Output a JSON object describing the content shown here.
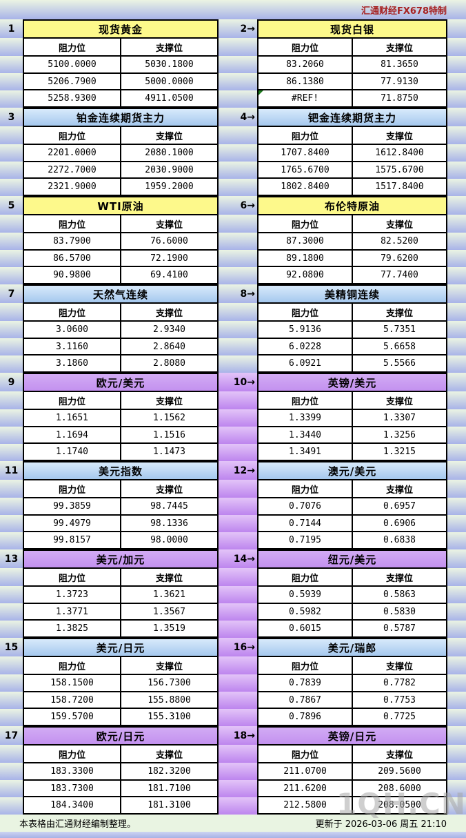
{
  "header": {
    "brand": "汇通财经FX678特制"
  },
  "labels": {
    "resistance": "阻力位",
    "support": "支撑位"
  },
  "footer": {
    "note": "本表格由汇通财经编制整理。",
    "updated": "更新于 2026-03-06 周五 21:10",
    "watermark": "1QH.CN"
  },
  "colors": {
    "brand_red": "#a62121",
    "title_yellow": "#fdf98b",
    "title_blue_top": "#d8eafb",
    "title_blue_bottom": "#a5c8ee",
    "title_purple": "#c9a0f0",
    "stripe_green_top": "#ebf4e3",
    "stripe_green_bottom": "#a8b3e8",
    "stripe_purple_top": "#e3c4f8",
    "stripe_purple_bottom": "#bd85ee",
    "error_marker_green": "#1d7a1d",
    "footer_green": "#e9f4e2"
  },
  "blocks": [
    {
      "gutter_theme": "green",
      "left": {
        "index": "1",
        "title": "现货黄金",
        "theme": "yellow",
        "rows": [
          [
            "5100.0000",
            "5030.1800"
          ],
          [
            "5206.7900",
            "5000.0000"
          ],
          [
            "5258.9300",
            "4911.0500"
          ]
        ]
      },
      "right": {
        "index": "2→",
        "title": "现货白银",
        "theme": "yellow",
        "error_cell": [
          2,
          0
        ],
        "rows": [
          [
            "83.2060",
            "81.3650"
          ],
          [
            "86.1380",
            "77.9130"
          ],
          [
            "#REF!",
            "71.8750"
          ]
        ]
      }
    },
    {
      "gutter_theme": "green",
      "left": {
        "index": "3",
        "title": "铂金连续期货主力",
        "theme": "blue",
        "rows": [
          [
            "2201.0000",
            "2080.1000"
          ],
          [
            "2272.7000",
            "2030.9000"
          ],
          [
            "2321.9000",
            "1959.2000"
          ]
        ]
      },
      "right": {
        "index": "4→",
        "title": "钯金连续期货主力",
        "theme": "blue",
        "rows": [
          [
            "1707.8400",
            "1612.8400"
          ],
          [
            "1765.6700",
            "1575.6700"
          ],
          [
            "1802.8400",
            "1517.8400"
          ]
        ]
      }
    },
    {
      "gutter_theme": "green",
      "left": {
        "index": "5",
        "title": "WTI原油",
        "theme": "yellow",
        "rows": [
          [
            "83.7900",
            "76.6000"
          ],
          [
            "86.5700",
            "72.1900"
          ],
          [
            "90.9800",
            "69.4100"
          ]
        ]
      },
      "right": {
        "index": "6→",
        "title": "布伦特原油",
        "theme": "yellow",
        "rows": [
          [
            "87.3000",
            "82.5200"
          ],
          [
            "89.1800",
            "79.6200"
          ],
          [
            "92.0800",
            "77.7400"
          ]
        ]
      }
    },
    {
      "gutter_theme": "green",
      "left": {
        "index": "7",
        "title": "天然气连续",
        "theme": "blue",
        "rows": [
          [
            "3.0600",
            "2.9340"
          ],
          [
            "3.1160",
            "2.8640"
          ],
          [
            "3.1860",
            "2.8080"
          ]
        ]
      },
      "right": {
        "index": "8→",
        "title": "美精铜连续",
        "theme": "blue",
        "rows": [
          [
            "5.9136",
            "5.7351"
          ],
          [
            "6.0228",
            "5.6658"
          ],
          [
            "6.0921",
            "5.5566"
          ]
        ]
      }
    },
    {
      "gutter_theme": "purple",
      "left": {
        "index": "9",
        "title": "欧元/美元",
        "theme": "purple",
        "rows": [
          [
            "1.1651",
            "1.1562"
          ],
          [
            "1.1694",
            "1.1516"
          ],
          [
            "1.1740",
            "1.1473"
          ]
        ]
      },
      "right": {
        "index": "10→",
        "title": "英镑/美元",
        "theme": "purple",
        "rows": [
          [
            "1.3399",
            "1.3307"
          ],
          [
            "1.3440",
            "1.3256"
          ],
          [
            "1.3491",
            "1.3215"
          ]
        ]
      }
    },
    {
      "gutter_theme": "purple",
      "left": {
        "index": "11",
        "title": "美元指数",
        "theme": "blue",
        "rows": [
          [
            "99.3859",
            "98.7445"
          ],
          [
            "99.4979",
            "98.1336"
          ],
          [
            "99.8157",
            "98.0000"
          ]
        ]
      },
      "right": {
        "index": "12→",
        "title": "澳元/美元",
        "theme": "blue",
        "rows": [
          [
            "0.7076",
            "0.6957"
          ],
          [
            "0.7144",
            "0.6906"
          ],
          [
            "0.7195",
            "0.6838"
          ]
        ]
      }
    },
    {
      "gutter_theme": "purple",
      "left": {
        "index": "13",
        "title": "美元/加元",
        "theme": "purple",
        "rows": [
          [
            "1.3723",
            "1.3621"
          ],
          [
            "1.3771",
            "1.3567"
          ],
          [
            "1.3825",
            "1.3519"
          ]
        ]
      },
      "right": {
        "index": "14→",
        "title": "纽元/美元",
        "theme": "purple",
        "rows": [
          [
            "0.5939",
            "0.5863"
          ],
          [
            "0.5982",
            "0.5830"
          ],
          [
            "0.6015",
            "0.5787"
          ]
        ]
      }
    },
    {
      "gutter_theme": "purple",
      "left": {
        "index": "15",
        "title": "美元/日元",
        "theme": "blue",
        "rows": [
          [
            "158.1500",
            "156.7300"
          ],
          [
            "158.7200",
            "155.8800"
          ],
          [
            "159.5700",
            "155.3100"
          ]
        ]
      },
      "right": {
        "index": "16→",
        "title": "美元/瑞郎",
        "theme": "blue",
        "rows": [
          [
            "0.7839",
            "0.7782"
          ],
          [
            "0.7867",
            "0.7753"
          ],
          [
            "0.7896",
            "0.7725"
          ]
        ]
      }
    },
    {
      "gutter_theme": "purple",
      "left": {
        "index": "17",
        "title": "欧元/日元",
        "theme": "purple",
        "rows": [
          [
            "183.3300",
            "182.3200"
          ],
          [
            "183.7300",
            "181.7100"
          ],
          [
            "184.3400",
            "181.3100"
          ]
        ]
      },
      "right": {
        "index": "18→",
        "title": "英镑/日元",
        "theme": "purple",
        "rows": [
          [
            "211.0700",
            "209.5600"
          ],
          [
            "211.6200",
            "208.6000"
          ],
          [
            "212.5800",
            "208.0500"
          ]
        ]
      }
    }
  ]
}
